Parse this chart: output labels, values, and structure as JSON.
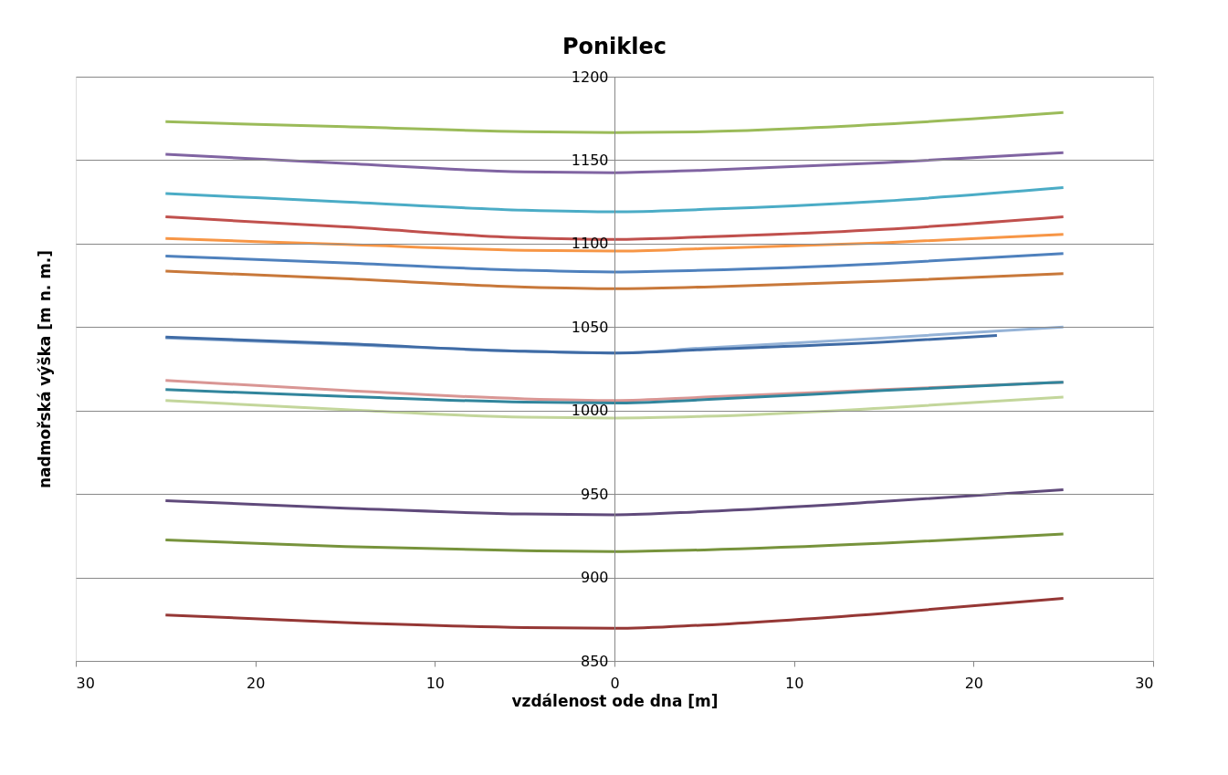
{
  "chart_data": {
    "type": "line",
    "title": "Poniklec",
    "xlabel": "vzdálenost ode dna [m]",
    "ylabel": "nadmořská výška [m n. m.]",
    "x": [
      -25,
      -15,
      -5,
      0,
      5,
      15,
      25
    ],
    "series": [
      {
        "color": "#9bbb59",
        "values": [
          1173,
          1170,
          1167,
          1166.5,
          1167,
          1171.5,
          1178.5
        ]
      },
      {
        "color": "#8064a2",
        "values": [
          1153.5,
          1148,
          1143,
          1142.5,
          1144,
          1148.5,
          1154.5
        ]
      },
      {
        "color": "#4bacc6",
        "values": [
          1130,
          1125,
          1120,
          1119,
          1120.5,
          1125.5,
          1133.5
        ]
      },
      {
        "color": "#c0504d",
        "values": [
          1116,
          1110,
          1103.5,
          1102.5,
          1104,
          1108.5,
          1116
        ]
      },
      {
        "color": "#f79646",
        "values": [
          1103,
          1099.5,
          1096,
          1095.5,
          1097,
          1100.5,
          1105.5
        ]
      },
      {
        "color": "#4f81bd",
        "values": [
          1092.5,
          1088.5,
          1084,
          1083,
          1084,
          1088,
          1094
        ]
      },
      {
        "color": "#c8783a",
        "values": [
          1083.5,
          1079,
          1074,
          1073,
          1074,
          1077.5,
          1082
        ]
      },
      {
        "color": "#95b3d7",
        "values": [
          1043.5,
          1039.5,
          1035.5,
          1034.5,
          1037.5,
          1043.5,
          1050
        ]
      },
      {
        "color": "#3f6ba5",
        "x": [
          -25,
          -15,
          -5,
          0,
          5,
          15,
          21.3
        ],
        "values": [
          1044,
          1040,
          1035.5,
          1034.5,
          1036.5,
          1041,
          1045
        ]
      },
      {
        "color": "#d99694",
        "values": [
          1018,
          1012,
          1007,
          1006,
          1008,
          1012.5,
          1017
        ]
      },
      {
        "color": "#31859c",
        "values": [
          1012.5,
          1008.5,
          1005,
          1004.5,
          1006.5,
          1012,
          1017
        ]
      },
      {
        "color": "#c3d69b",
        "values": [
          1006,
          1000.5,
          996,
          995.5,
          996.5,
          1001.5,
          1008
        ]
      },
      {
        "color": "#604a7b",
        "values": [
          946,
          941.5,
          938,
          937.5,
          939.5,
          945.5,
          952.5
        ]
      },
      {
        "color": "#77933c",
        "values": [
          922.5,
          918.5,
          916,
          915.5,
          916.5,
          920.5,
          926
        ]
      },
      {
        "color": "#953735",
        "values": [
          877.5,
          873,
          870,
          869.5,
          871.5,
          878.5,
          887.5
        ]
      }
    ],
    "xlim": [
      -30,
      30
    ],
    "xticks": [
      {
        "value": -30,
        "label": "30"
      },
      {
        "value": -20,
        "label": "20"
      },
      {
        "value": -10,
        "label": "10"
      },
      0,
      10,
      20,
      30
    ],
    "ylim": [
      850,
      1200
    ],
    "yticks": [
      850,
      900,
      950,
      1000,
      1050,
      1100,
      1150,
      1200
    ],
    "grid": "y",
    "legend": false,
    "marker": "none",
    "line_style": "solid"
  }
}
